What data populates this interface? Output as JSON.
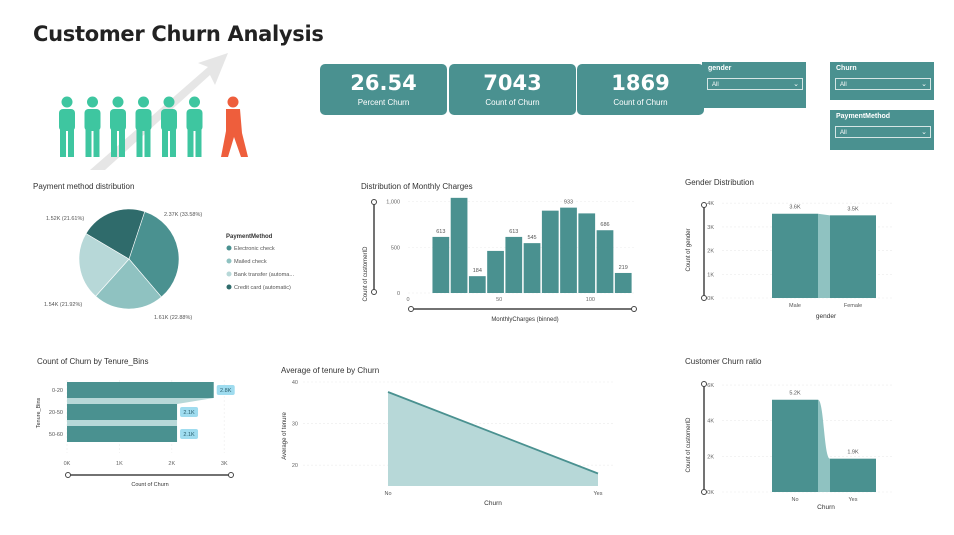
{
  "title": "Customer Churn Analysis",
  "colors": {
    "teal": "#4a9190",
    "teal_light": "#8fc2c1",
    "teal_pale": "#b7d8d8",
    "teal_dark": "#2f6b6b",
    "person_teal": "#3ec6a0",
    "person_orange": "#ee5e3c",
    "badge": "#9fdcef"
  },
  "kpis": [
    {
      "value": "26.54",
      "label": "Percent Churn"
    },
    {
      "value": "7043",
      "label": "Count of Churn"
    },
    {
      "value": "1869",
      "label": "Count of Churn"
    }
  ],
  "slicers": {
    "gender": {
      "label": "gender",
      "value": "All"
    },
    "churn": {
      "label": "Churn",
      "value": "All"
    },
    "payment": {
      "label": "PaymentMethod",
      "value": "All"
    }
  },
  "payment_chart": {
    "title": "Payment method distribution",
    "legend_title": "PaymentMethod",
    "legend": [
      "Electronic check",
      "Mailed check",
      "Bank transfer (automa...",
      "Credit card (automatic)"
    ],
    "slice_labels": [
      "2.37K (33.58%)",
      "1.61K (22.88%)",
      "1.54K (21.92%)",
      "1.52K (21.61%)"
    ]
  },
  "monthly_chart": {
    "title": "Distribution of Monthly Charges",
    "xlabel": "MonthlyCharges (binned)",
    "ylabel": "Count of customerID",
    "yticks": [
      "0",
      "500",
      "1,000"
    ],
    "xticks": [
      "0",
      "50",
      "100"
    ],
    "value_labels": [
      "613",
      "1040",
      "184",
      "613",
      "545",
      "933",
      "686",
      "219"
    ]
  },
  "gender_chart": {
    "title": "Gender Distribution",
    "xlabel": "gender",
    "ylabel": "Count of gender",
    "yticks": [
      "0K",
      "1K",
      "2K",
      "3K",
      "4K"
    ],
    "value_labels": [
      "3.6K",
      "3.5K"
    ]
  },
  "tenure_chart": {
    "title": "Count of Churn by Tenure_Bins",
    "xlabel": "Count of Churn",
    "ylabel": "Tenure_Bins",
    "xticks": [
      "0K",
      "1K",
      "2K",
      "3K"
    ],
    "value_labels": [
      "2.8K",
      "2.1K",
      "2.1K"
    ]
  },
  "avg_tenure_chart": {
    "title": "Average of tenure by Churn",
    "xlabel": "Churn",
    "ylabel": "Average of tenure",
    "yticks": [
      "20",
      "30",
      "40"
    ]
  },
  "churn_ratio_chart": {
    "title": "Customer Churn ratio",
    "xlabel": "Churn",
    "ylabel": "Count of customerID",
    "yticks": [
      "0K",
      "2K",
      "4K",
      "6K"
    ],
    "value_labels": [
      "5.2K",
      "1.9K"
    ]
  },
  "chart_data": [
    {
      "type": "pie",
      "title": "Payment method distribution",
      "categories": [
        "Electronic check",
        "Mailed check",
        "Bank transfer (automatic)",
        "Credit card (automatic)"
      ],
      "values": [
        2370,
        1610,
        1540,
        1520
      ],
      "percents": [
        33.58,
        22.88,
        21.92,
        21.61
      ],
      "legend": "right"
    },
    {
      "type": "bar",
      "title": "Distribution of Monthly Charges",
      "x": [
        18,
        28,
        38,
        48,
        58,
        68,
        78,
        88,
        98,
        108,
        118
      ],
      "values": [
        613,
        1040,
        184,
        460,
        613,
        545,
        900,
        933,
        870,
        686,
        219
      ],
      "xlabel": "MonthlyCharges (binned)",
      "ylabel": "Count of customerID",
      "xlim": [
        0,
        125
      ],
      "ylim": [
        0,
        1250
      ]
    },
    {
      "type": "bar",
      "title": "Gender Distribution",
      "categories": [
        "Male",
        "Female"
      ],
      "values": [
        3555,
        3488
      ],
      "xlabel": "gender",
      "ylabel": "Count of gender",
      "ylim": [
        0,
        4000
      ]
    },
    {
      "type": "bar",
      "title": "Count of Churn by Tenure_Bins",
      "orientation": "horizontal",
      "categories": [
        "0-20",
        "20-50",
        "50-60"
      ],
      "values": [
        2800,
        2100,
        2100
      ],
      "xlabel": "Count of Churn",
      "ylabel": "Tenure_Bins",
      "xlim": [
        0,
        3000
      ]
    },
    {
      "type": "area",
      "title": "Average of tenure by Churn",
      "categories": [
        "No",
        "Yes"
      ],
      "values": [
        37.6,
        18.0
      ],
      "xlabel": "Churn",
      "ylabel": "Average of tenure",
      "ylim": [
        15,
        40
      ]
    },
    {
      "type": "bar",
      "title": "Customer Churn ratio",
      "categories": [
        "No",
        "Yes"
      ],
      "values": [
        5174,
        1869
      ],
      "xlabel": "Churn",
      "ylabel": "Count of customerID",
      "ylim": [
        0,
        6000
      ]
    }
  ]
}
